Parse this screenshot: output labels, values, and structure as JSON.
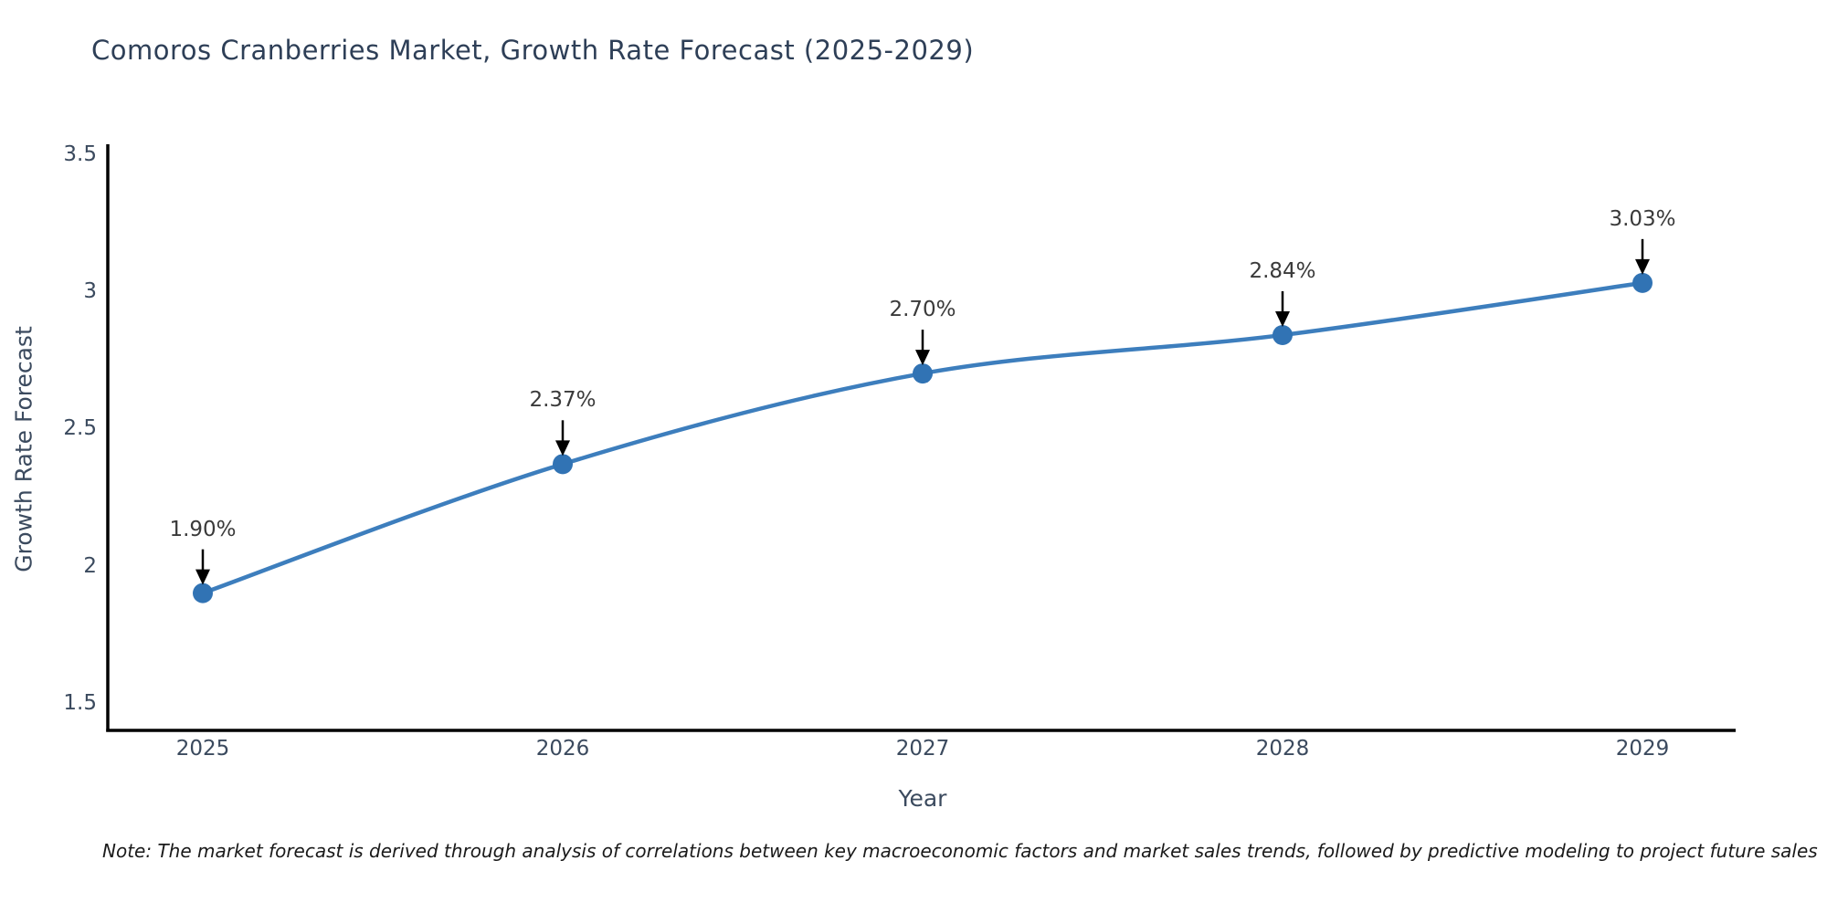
{
  "note": "Note: The market forecast is derived through analysis of correlations between key macroeconomic factors and market sales trends, followed by predictive modeling to project future sales",
  "chart_data": {
    "type": "line",
    "title": "Comoros Cranberries Market, Growth Rate Forecast (2025-2029)",
    "xlabel": "Year",
    "ylabel": "Growth Rate Forecast",
    "x": [
      "2025",
      "2026",
      "2027",
      "2028",
      "2029"
    ],
    "y": [
      1.9,
      2.37,
      2.7,
      2.84,
      3.03
    ],
    "point_labels": [
      "1.90%",
      "2.37%",
      "2.70%",
      "2.84%",
      "3.03%"
    ],
    "yticks": [
      1.5,
      2,
      2.5,
      3,
      3.5
    ],
    "ylim": [
      1.4,
      3.535
    ],
    "grid": false,
    "legend": false,
    "marker_style": "circle",
    "annotation_arrows": true,
    "colors": {
      "line": "#3d7ebd",
      "marker": "#3173b4",
      "axis": "#000000",
      "arrow": "#000000",
      "title_text": "#2e3f57",
      "axis_text": "#3b4a5e",
      "annotation_text": "#3a3a3a",
      "note_text": "#1a1a1a",
      "background": "#ffffff"
    }
  }
}
